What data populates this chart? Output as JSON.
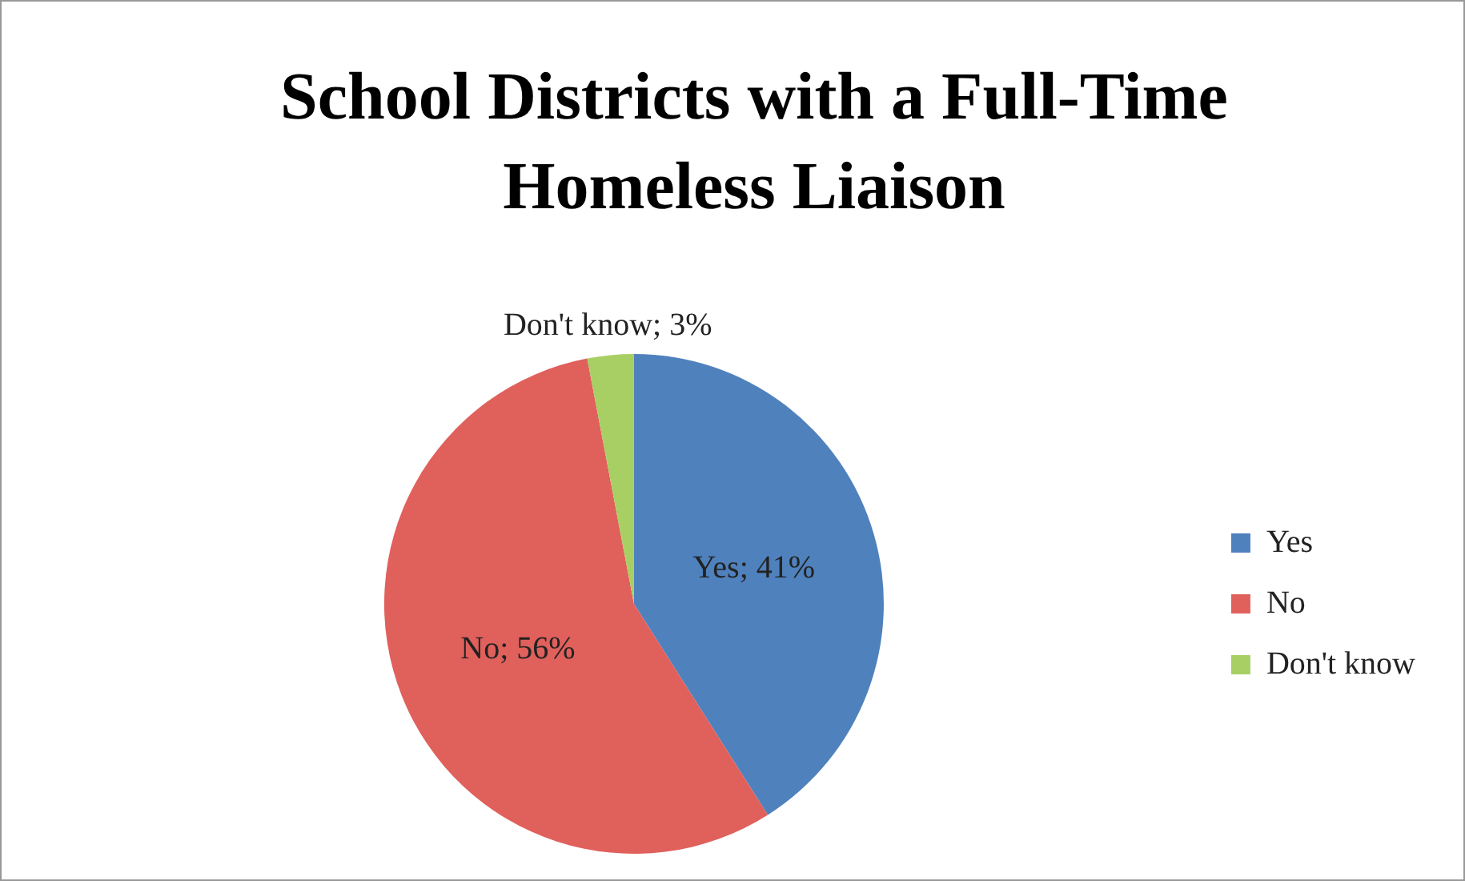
{
  "chart_data": {
    "type": "pie",
    "title": "School Districts with a Full-Time Homeless Liaison",
    "categories": [
      "Yes",
      "No",
      "Don't know"
    ],
    "values": [
      41,
      56,
      3
    ],
    "colors": [
      "#4f81bd",
      "#e0605c",
      "#a8cf63"
    ],
    "value_labels": [
      "Yes; 41%",
      "No; 56%",
      "Don't know; 3%"
    ],
    "legend": "right"
  }
}
